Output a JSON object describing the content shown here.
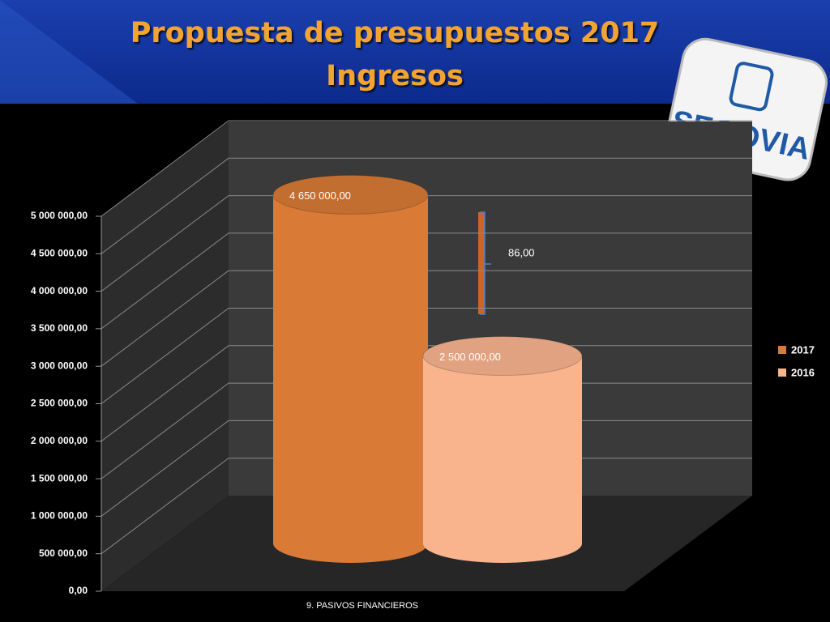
{
  "title": [
    "Propuesta de presupuestos 2017",
    "Ingresos"
  ],
  "logo": "SEGOVIA",
  "chart_data": {
    "type": "bar3d",
    "categories": [
      "9. PASIVOS FINANCIEROS"
    ],
    "series": [
      {
        "name": "2017",
        "color": "#d97a36",
        "values": [
          4650000
        ],
        "value_labels": [
          "4 650 000,00"
        ]
      },
      {
        "name": "2016",
        "color": "#f9b48e",
        "values": [
          2500000
        ],
        "value_labels": [
          "2 500 000,00"
        ]
      }
    ],
    "annotation": "86,00",
    "ylim": [
      0,
      5000000
    ],
    "yticks": [
      {
        "value": 0,
        "label": "0,00"
      },
      {
        "value": 500000,
        "label": "500 000,00"
      },
      {
        "value": 1000000,
        "label": "1 000 000,00"
      },
      {
        "value": 1500000,
        "label": "1 500 000,00"
      },
      {
        "value": 2000000,
        "label": "2 000 000,00"
      },
      {
        "value": 2500000,
        "label": "2 500 000,00"
      },
      {
        "value": 3000000,
        "label": "3 000 000,00"
      },
      {
        "value": 3500000,
        "label": "3 500 000,00"
      },
      {
        "value": 4000000,
        "label": "4 000 000,00"
      },
      {
        "value": 4500000,
        "label": "4 500 000,00"
      },
      {
        "value": 5000000,
        "label": "5 000 000,00"
      }
    ],
    "grid": true,
    "legend": "right"
  }
}
